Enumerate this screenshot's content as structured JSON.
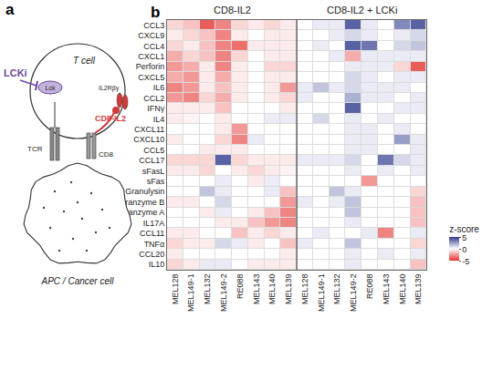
{
  "panel_labels": [
    "a",
    "b"
  ],
  "diagram": {
    "t_cell": "T cell",
    "inhibitor": "LCKi",
    "kinase": "Lck",
    "receptor": "IL2Rβγ",
    "molecule": "CD8-IL2",
    "tcr": "TCR",
    "coreceptor": "CD8",
    "target_cell": "APC / Cancer cell"
  },
  "chart_data": {
    "type": "heatmap",
    "groups": [
      {
        "label": "CD8-IL2",
        "columns": 8
      },
      {
        "label": "CD8-IL2 + LCKi",
        "columns": 8
      }
    ],
    "x": [
      "MEL128",
      "MEL149-1",
      "MEL132",
      "MEL149-2",
      "RE088",
      "MEL143",
      "MEL140",
      "MEL139",
      "MEL128",
      "MEL149-1",
      "MEL132",
      "MEL149-2",
      "RE088",
      "MEL143",
      "MEL140",
      "MEL139"
    ],
    "y": [
      "CCL3",
      "CXCL9",
      "CCL4",
      "CXCL1",
      "Perforin",
      "CXCL5",
      "IL6",
      "CCL2",
      "IFNγ",
      "IL4",
      "CXCL11",
      "CXCL10",
      "CCL5",
      "CCL17",
      "sFasL",
      "sFas",
      "Granulysin",
      "Granzyme B",
      "Granzyme A",
      "IL17A",
      "CCL11",
      "TNFα",
      "CCL20",
      "IL10"
    ],
    "z": [
      [
        -1,
        -1.5,
        -4,
        -3,
        -1,
        -0.5,
        -1,
        -0.5,
        0,
        0.5,
        0.5,
        4,
        0.5,
        0,
        3,
        4
      ],
      [
        -0.5,
        -1,
        -1.5,
        -3,
        -0.5,
        0,
        -0.5,
        -0.5,
        0,
        0,
        0.5,
        1,
        0.5,
        0,
        0.5,
        1
      ],
      [
        -1,
        -0.5,
        -1.5,
        -3,
        -3.5,
        -0.5,
        -0.5,
        -0.5,
        0,
        0.5,
        0,
        4,
        3.5,
        0,
        1,
        1.5
      ],
      [
        -2,
        -1,
        -1.5,
        -3,
        -1,
        0,
        -0.5,
        -0.5,
        0,
        0,
        0.5,
        -2,
        0.5,
        0.5,
        0.5,
        0.5
      ],
      [
        -2.5,
        -2,
        -0.5,
        -3,
        -0.5,
        0,
        -1,
        -1,
        0,
        0,
        0,
        0.5,
        0.5,
        0.5,
        -1,
        -4
      ],
      [
        -2,
        -2.5,
        -0.5,
        -2,
        -0.5,
        0,
        -0.5,
        -0.5,
        0,
        0,
        0,
        1,
        0.5,
        0,
        0.5,
        0.5
      ],
      [
        -3,
        -2.5,
        -0.5,
        -1.5,
        -0.5,
        0,
        -0.5,
        -2.5,
        0.5,
        1.5,
        0.5,
        1,
        0.5,
        0.5,
        0.5,
        0
      ],
      [
        -2.5,
        -3,
        -1,
        -2,
        -0.5,
        0,
        -0.5,
        -1,
        0.5,
        0,
        0,
        2,
        0.5,
        0.5,
        0,
        0.5
      ],
      [
        -0.5,
        -0.5,
        -0.5,
        -1.5,
        0,
        0,
        0,
        -0.5,
        0,
        0,
        0,
        4,
        0,
        0,
        0.5,
        0.5
      ],
      [
        -0.5,
        -0.3,
        0,
        -0.5,
        0,
        0,
        0.5,
        0.5,
        0,
        1,
        0,
        0.5,
        0,
        0.5,
        0,
        0
      ],
      [
        0,
        0,
        0,
        -0.5,
        -2.5,
        0,
        0,
        0,
        0,
        0,
        0,
        0.5,
        0.5,
        0,
        0.5,
        0
      ],
      [
        -0.5,
        0,
        0,
        -1,
        -3,
        0.5,
        0,
        0,
        0,
        0,
        0,
        0.5,
        0.5,
        0,
        2.5,
        0.5
      ],
      [
        0,
        0,
        -0.5,
        -0.5,
        -0.5,
        0,
        0,
        0,
        0,
        0,
        0,
        0.5,
        0.5,
        0,
        0,
        0.5
      ],
      [
        -1,
        -1,
        -1,
        4,
        -1,
        -0.5,
        -0.5,
        -0.5,
        0.5,
        0.5,
        0.5,
        1,
        0,
        3.5,
        1,
        0.5
      ],
      [
        -0.5,
        -0.5,
        -1,
        0,
        -0.5,
        -1,
        -0.5,
        -0.3,
        0,
        0,
        0,
        0.5,
        0,
        0.5,
        0,
        0.5
      ],
      [
        0,
        0,
        0,
        0.5,
        0,
        -0.5,
        0.5,
        0,
        0,
        0,
        0,
        0,
        -2.5,
        0,
        0,
        0
      ],
      [
        0,
        0,
        1.5,
        0.5,
        0,
        0,
        0.5,
        -1.5,
        0,
        0,
        1.5,
        0.5,
        0,
        0,
        0,
        -1
      ],
      [
        -0.5,
        -0.5,
        0,
        1,
        0,
        0,
        0,
        -2.5,
        0.5,
        0,
        0.5,
        1.5,
        0,
        0,
        0,
        -1.5
      ],
      [
        0,
        0,
        -0.5,
        0.5,
        0,
        -0.5,
        -1.5,
        -3,
        0,
        0,
        0,
        1.5,
        0,
        0,
        0,
        -1.5
      ],
      [
        0,
        0,
        0,
        -0.5,
        -0.5,
        -1.5,
        -2.5,
        -3,
        0,
        0,
        0,
        0.5,
        0,
        0,
        0,
        -1.5
      ],
      [
        -0.5,
        -0.5,
        0,
        0,
        -1.5,
        -0.5,
        -1,
        -0.5,
        0,
        0.5,
        0,
        0,
        0.5,
        -3,
        0,
        0.5
      ],
      [
        -1,
        -0.5,
        -0.5,
        1,
        0.5,
        -0.5,
        0,
        -1.5,
        0.5,
        0,
        0,
        1.5,
        0,
        0,
        0,
        -1
      ],
      [
        -0.5,
        0,
        0,
        0,
        0,
        0,
        0,
        -0.5,
        0,
        0,
        0,
        0.5,
        0,
        0.5,
        0,
        0.5
      ],
      [
        -1,
        -0.5,
        0.5,
        0.5,
        0,
        -0.5,
        -0.5,
        -0.5,
        0,
        0,
        0,
        0.5,
        0,
        0,
        0,
        -1.5
      ]
    ],
    "colorbar": {
      "title": "z-score",
      "range": [
        -5,
        5
      ],
      "ticks": [
        5,
        0,
        -5
      ],
      "colors": [
        "#e5332f",
        "#ffffff",
        "#2f3b8f"
      ]
    }
  }
}
